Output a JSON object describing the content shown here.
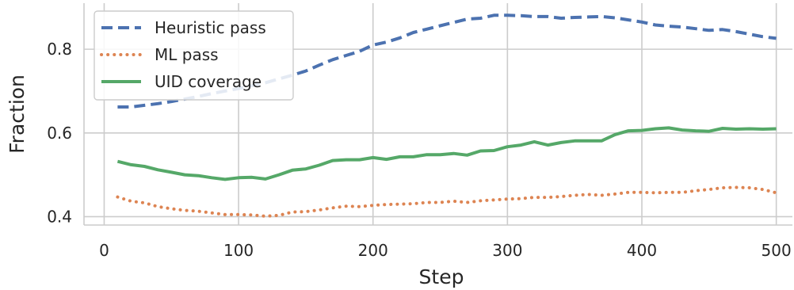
{
  "chart_data": {
    "type": "line",
    "xlabel": "Step",
    "ylabel": "Fraction",
    "xlim": [
      -15,
      512
    ],
    "ylim": [
      0.38,
      0.91
    ],
    "xticks": [
      0,
      100,
      200,
      300,
      400,
      500
    ],
    "xtick_labels": [
      "0",
      "100",
      "200",
      "300",
      "400",
      "500"
    ],
    "yticks": [
      0.4,
      0.6,
      0.8
    ],
    "ytick_labels": [
      "0.4",
      "0.6",
      "0.8"
    ],
    "grid": true,
    "legend_position": "top-left",
    "x": [
      10,
      20,
      30,
      40,
      50,
      60,
      70,
      80,
      90,
      100,
      110,
      120,
      130,
      140,
      150,
      160,
      170,
      180,
      190,
      200,
      210,
      220,
      230,
      240,
      250,
      260,
      270,
      280,
      290,
      300,
      310,
      320,
      330,
      340,
      350,
      360,
      370,
      380,
      390,
      400,
      410,
      420,
      430,
      440,
      450,
      460,
      470,
      480,
      490,
      500
    ],
    "series": [
      {
        "name": "Heuristic pass",
        "color": "#4c72b0",
        "style": "dashed",
        "values": [
          0.662,
          0.662,
          0.666,
          0.67,
          0.675,
          0.681,
          0.687,
          0.694,
          0.7,
          0.706,
          0.713,
          0.72,
          0.729,
          0.738,
          0.748,
          0.762,
          0.775,
          0.785,
          0.795,
          0.81,
          0.817,
          0.827,
          0.84,
          0.848,
          0.856,
          0.864,
          0.872,
          0.874,
          0.881,
          0.881,
          0.88,
          0.878,
          0.878,
          0.874,
          0.876,
          0.877,
          0.878,
          0.875,
          0.87,
          0.865,
          0.858,
          0.855,
          0.853,
          0.849,
          0.845,
          0.847,
          0.842,
          0.836,
          0.83,
          0.826
        ]
      },
      {
        "name": "ML pass",
        "color": "#dd8452",
        "style": "dotted",
        "values": [
          0.447,
          0.437,
          0.433,
          0.424,
          0.419,
          0.415,
          0.413,
          0.409,
          0.405,
          0.405,
          0.404,
          0.401,
          0.403,
          0.411,
          0.412,
          0.416,
          0.421,
          0.425,
          0.424,
          0.427,
          0.429,
          0.43,
          0.431,
          0.434,
          0.434,
          0.437,
          0.434,
          0.438,
          0.44,
          0.442,
          0.443,
          0.446,
          0.446,
          0.448,
          0.451,
          0.453,
          0.451,
          0.454,
          0.458,
          0.458,
          0.457,
          0.458,
          0.458,
          0.462,
          0.465,
          0.469,
          0.47,
          0.469,
          0.465,
          0.457
        ]
      },
      {
        "name": "UID coverage",
        "color": "#55a868",
        "style": "solid",
        "values": [
          0.532,
          0.524,
          0.52,
          0.512,
          0.506,
          0.5,
          0.498,
          0.493,
          0.489,
          0.493,
          0.494,
          0.49,
          0.5,
          0.511,
          0.514,
          0.523,
          0.534,
          0.536,
          0.536,
          0.541,
          0.537,
          0.543,
          0.543,
          0.548,
          0.548,
          0.551,
          0.547,
          0.557,
          0.558,
          0.567,
          0.571,
          0.579,
          0.571,
          0.577,
          0.581,
          0.581,
          0.581,
          0.596,
          0.605,
          0.606,
          0.61,
          0.612,
          0.607,
          0.605,
          0.604,
          0.611,
          0.609,
          0.61,
          0.609,
          0.61
        ]
      }
    ]
  }
}
